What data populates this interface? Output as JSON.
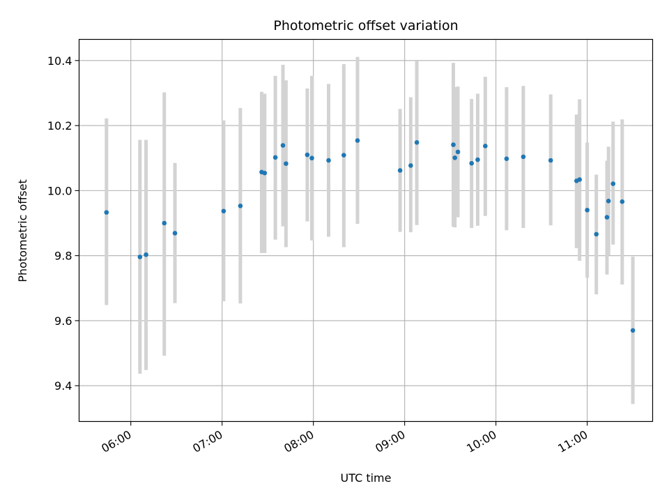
{
  "chart_data": {
    "type": "scatter",
    "title": "Photometric offset variation",
    "xlabel": "UTC time",
    "ylabel": "Photometric offset",
    "x_type": "time",
    "xlim": [
      "05:26",
      "11:43"
    ],
    "ylim": [
      9.29,
      10.465
    ],
    "x_ticks": [
      "06:00",
      "07:00",
      "08:00",
      "09:00",
      "10:00",
      "11:00"
    ],
    "y_ticks": [
      9.4,
      9.6,
      9.8,
      10.0,
      10.2,
      10.4
    ],
    "y_tick_labels": [
      "9.4",
      "9.6",
      "9.8",
      "10.0",
      "10.2",
      "10.4"
    ],
    "grid": true,
    "legend": false,
    "colors": {
      "point": "#1f77b4",
      "errorbar": "#d3d3d3",
      "grid": "#b0b0b0"
    },
    "series": [
      {
        "points": [
          {
            "x": "05:44",
            "y": 9.933,
            "lo": 9.648,
            "hi": 10.222
          },
          {
            "x": "06:06",
            "y": 9.796,
            "lo": 9.437,
            "hi": 10.156
          },
          {
            "x": "06:10",
            "y": 9.803,
            "lo": 9.448,
            "hi": 10.156
          },
          {
            "x": "06:22",
            "y": 9.9,
            "lo": 9.492,
            "hi": 10.302
          },
          {
            "x": "06:29",
            "y": 9.869,
            "lo": 9.654,
            "hi": 10.085
          },
          {
            "x": "07:01",
            "y": 9.937,
            "lo": 9.66,
            "hi": 10.216
          },
          {
            "x": "07:12",
            "y": 9.953,
            "lo": 9.653,
            "hi": 10.254
          },
          {
            "x": "07:26",
            "y": 10.057,
            "lo": 9.808,
            "hi": 10.304
          },
          {
            "x": "07:28",
            "y": 10.054,
            "lo": 9.808,
            "hi": 10.298
          },
          {
            "x": "07:35",
            "y": 10.102,
            "lo": 9.849,
            "hi": 10.353
          },
          {
            "x": "07:40",
            "y": 10.139,
            "lo": 9.89,
            "hi": 10.387
          },
          {
            "x": "07:42",
            "y": 10.083,
            "lo": 9.826,
            "hi": 10.339
          },
          {
            "x": "07:56",
            "y": 10.11,
            "lo": 9.905,
            "hi": 10.314
          },
          {
            "x": "07:59",
            "y": 10.1,
            "lo": 9.847,
            "hi": 10.353
          },
          {
            "x": "08:10",
            "y": 10.093,
            "lo": 9.858,
            "hi": 10.328
          },
          {
            "x": "08:20",
            "y": 10.109,
            "lo": 9.826,
            "hi": 10.389
          },
          {
            "x": "08:29",
            "y": 10.154,
            "lo": 9.898,
            "hi": 10.411
          },
          {
            "x": "08:57",
            "y": 10.062,
            "lo": 9.873,
            "hi": 10.251
          },
          {
            "x": "09:04",
            "y": 10.077,
            "lo": 9.872,
            "hi": 10.287
          },
          {
            "x": "09:08",
            "y": 10.148,
            "lo": 9.894,
            "hi": 10.398
          },
          {
            "x": "09:32",
            "y": 10.141,
            "lo": 9.889,
            "hi": 10.393
          },
          {
            "x": "09:33",
            "y": 10.101,
            "lo": 9.887,
            "hi": 10.318
          },
          {
            "x": "09:35",
            "y": 10.119,
            "lo": 9.918,
            "hi": 10.32
          },
          {
            "x": "09:44",
            "y": 10.084,
            "lo": 9.885,
            "hi": 10.282
          },
          {
            "x": "09:48",
            "y": 10.095,
            "lo": 9.892,
            "hi": 10.298
          },
          {
            "x": "09:53",
            "y": 10.137,
            "lo": 9.922,
            "hi": 10.35
          },
          {
            "x": "10:07",
            "y": 10.098,
            "lo": 9.878,
            "hi": 10.318
          },
          {
            "x": "10:18",
            "y": 10.104,
            "lo": 9.885,
            "hi": 10.322
          },
          {
            "x": "10:36",
            "y": 10.093,
            "lo": 9.893,
            "hi": 10.296
          },
          {
            "x": "10:53",
            "y": 10.03,
            "lo": 9.823,
            "hi": 10.234
          },
          {
            "x": "10:55",
            "y": 10.034,
            "lo": 9.784,
            "hi": 10.281
          },
          {
            "x": "11:00",
            "y": 9.94,
            "lo": 9.732,
            "hi": 10.148
          },
          {
            "x": "11:06",
            "y": 9.866,
            "lo": 9.681,
            "hi": 10.049
          },
          {
            "x": "11:13",
            "y": 9.918,
            "lo": 9.742,
            "hi": 10.092
          },
          {
            "x": "11:14",
            "y": 9.968,
            "lo": 9.801,
            "hi": 10.135
          },
          {
            "x": "11:17",
            "y": 10.021,
            "lo": 9.834,
            "hi": 10.212
          },
          {
            "x": "11:23",
            "y": 9.966,
            "lo": 9.711,
            "hi": 10.219
          },
          {
            "x": "11:30",
            "y": 9.57,
            "lo": 9.344,
            "hi": 9.797
          }
        ]
      }
    ]
  }
}
